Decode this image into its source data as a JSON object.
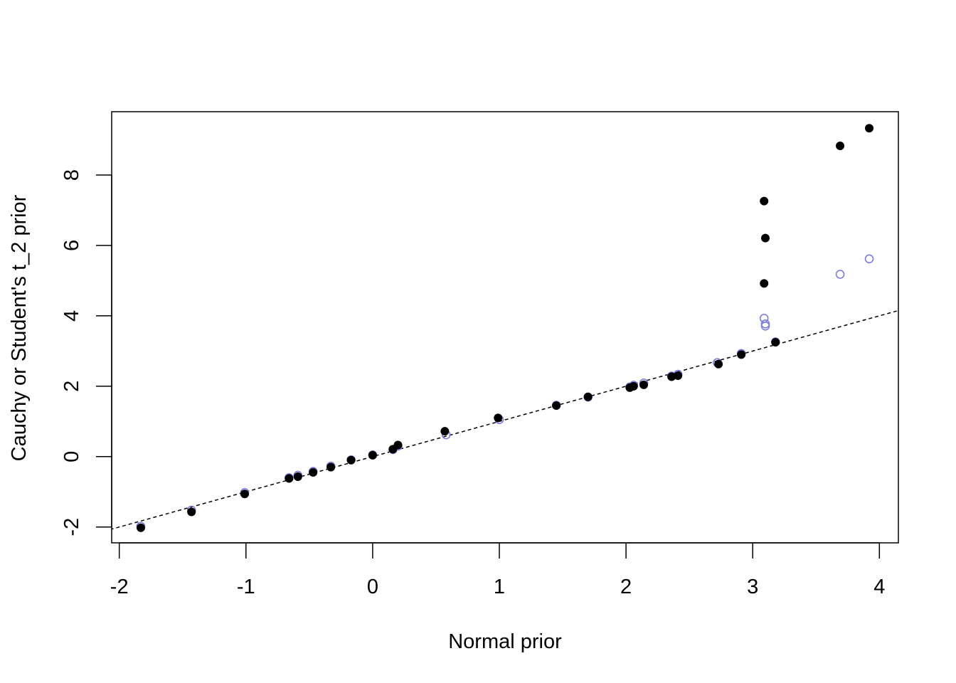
{
  "chart_data": {
    "type": "scatter",
    "title": "",
    "xlabel": "Normal prior",
    "ylabel": "Cauchy or Student's t_2 prior",
    "xlim": [
      -2.06,
      4.15
    ],
    "ylim": [
      -2.45,
      9.8
    ],
    "x_ticks": [
      -2,
      -1,
      0,
      1,
      2,
      3,
      4
    ],
    "y_ticks": [
      -2,
      0,
      2,
      4,
      6,
      8
    ],
    "grid": false,
    "legend": "none",
    "reference_line": {
      "slope": 1,
      "intercept": 0,
      "style": "dashed",
      "color": "#000000"
    },
    "series": [
      {
        "marker": "filled-circle",
        "color": "#000000",
        "points": [
          [
            -1.83,
            -2.02
          ],
          [
            -1.43,
            -1.57
          ],
          [
            -1.01,
            -1.06
          ],
          [
            -0.66,
            -0.62
          ],
          [
            -0.59,
            -0.57
          ],
          [
            -0.47,
            -0.45
          ],
          [
            -0.33,
            -0.3
          ],
          [
            -0.17,
            -0.1
          ],
          [
            0.0,
            0.04
          ],
          [
            0.16,
            0.21
          ],
          [
            0.2,
            0.33
          ],
          [
            0.57,
            0.72
          ],
          [
            0.99,
            1.1
          ],
          [
            1.45,
            1.45
          ],
          [
            1.7,
            1.7
          ],
          [
            2.03,
            1.96
          ],
          [
            2.06,
            2.0
          ],
          [
            2.14,
            2.04
          ],
          [
            2.36,
            2.27
          ],
          [
            2.41,
            2.3
          ],
          [
            2.73,
            2.63
          ],
          [
            2.91,
            2.9
          ],
          [
            3.09,
            4.92
          ],
          [
            3.1,
            6.21
          ],
          [
            3.09,
            7.26
          ],
          [
            3.18,
            3.25
          ],
          [
            3.69,
            8.83
          ],
          [
            3.92,
            9.33
          ]
        ]
      },
      {
        "marker": "open-circle",
        "color": "#7B7BE5",
        "points": [
          [
            -1.83,
            -1.98
          ],
          [
            -1.43,
            -1.52
          ],
          [
            -1.01,
            -1.02
          ],
          [
            -0.66,
            -0.6
          ],
          [
            -0.59,
            -0.53
          ],
          [
            -0.47,
            -0.42
          ],
          [
            -0.33,
            -0.27
          ],
          [
            -0.17,
            -0.09
          ],
          [
            0.0,
            0.05
          ],
          [
            0.16,
            0.2
          ],
          [
            0.2,
            0.3
          ],
          [
            0.58,
            0.62
          ],
          [
            1.0,
            1.05
          ],
          [
            1.45,
            1.46
          ],
          [
            1.7,
            1.69
          ],
          [
            2.03,
            1.98
          ],
          [
            2.06,
            2.03
          ],
          [
            2.14,
            2.09
          ],
          [
            2.36,
            2.29
          ],
          [
            2.41,
            2.34
          ],
          [
            2.72,
            2.67
          ],
          [
            2.91,
            2.93
          ],
          [
            3.09,
            3.93
          ],
          [
            3.1,
            3.71
          ],
          [
            3.1,
            3.77
          ],
          [
            3.18,
            3.26
          ],
          [
            3.69,
            5.18
          ],
          [
            3.92,
            5.62
          ]
        ]
      }
    ]
  }
}
